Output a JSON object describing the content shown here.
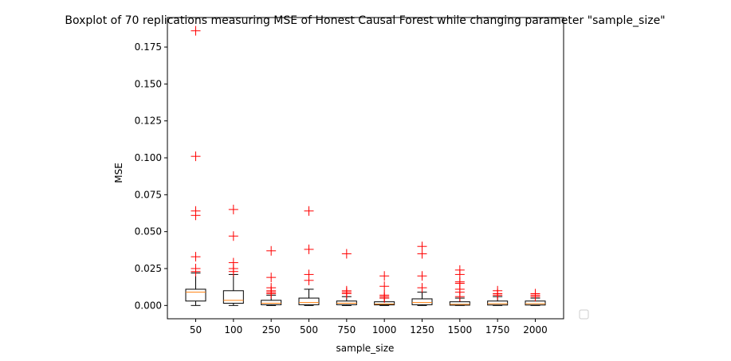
{
  "chart_data": {
    "type": "boxplot",
    "title": "Boxplot of 70 replications measuring MSE of Honest Causal Forest while changing parameter \"sample_size\"",
    "xlabel": "sample_size",
    "ylabel": "MSE",
    "categories": [
      "50",
      "100",
      "250",
      "500",
      "750",
      "1000",
      "1250",
      "1500",
      "1750",
      "2000"
    ],
    "ylim": [
      -0.009,
      0.195
    ],
    "yticks": [
      0.0,
      0.025,
      0.05,
      0.075,
      0.1,
      0.125,
      0.15,
      0.175
    ],
    "ytick_labels": [
      "0.000",
      "0.025",
      "0.050",
      "0.075",
      "0.100",
      "0.125",
      "0.150",
      "0.175"
    ],
    "grid": false,
    "legend": "empty, lower-right outside plot",
    "colors": {
      "box": "#000000",
      "median": "#ff7f0e",
      "flier": "#ff0000"
    },
    "boxes": [
      {
        "category": "50",
        "whislo": 0.0,
        "q1": 0.003,
        "med": 0.009,
        "q3": 0.011,
        "whishi": 0.022,
        "fliers": [
          0.186,
          0.101,
          0.064,
          0.061,
          0.033,
          0.025,
          0.023
        ]
      },
      {
        "category": "100",
        "whislo": 0.0,
        "q1": 0.0015,
        "med": 0.0035,
        "q3": 0.01,
        "whishi": 0.021,
        "fliers": [
          0.065,
          0.047,
          0.029,
          0.025,
          0.023
        ]
      },
      {
        "category": "250",
        "whislo": 0.0,
        "q1": 0.0005,
        "med": 0.0015,
        "q3": 0.0035,
        "whishi": 0.007,
        "fliers": [
          0.037,
          0.019,
          0.012,
          0.01,
          0.009,
          0.008
        ]
      },
      {
        "category": "500",
        "whislo": 0.0,
        "q1": 0.0005,
        "med": 0.002,
        "q3": 0.005,
        "whishi": 0.011,
        "fliers": [
          0.064,
          0.038,
          0.021,
          0.017
        ]
      },
      {
        "category": "750",
        "whislo": 0.0,
        "q1": 0.0005,
        "med": 0.0015,
        "q3": 0.003,
        "whishi": 0.006,
        "fliers": [
          0.035,
          0.01,
          0.009,
          0.008
        ]
      },
      {
        "category": "1000",
        "whislo": 0.0,
        "q1": 0.0004,
        "med": 0.001,
        "q3": 0.0025,
        "whishi": 0.005,
        "fliers": [
          0.02,
          0.013,
          0.007,
          0.006,
          0.005
        ]
      },
      {
        "category": "1250",
        "whislo": 0.0,
        "q1": 0.0005,
        "med": 0.002,
        "q3": 0.0045,
        "whishi": 0.009,
        "fliers": [
          0.04,
          0.035,
          0.02,
          0.012
        ]
      },
      {
        "category": "1500",
        "whislo": 0.0,
        "q1": 0.0002,
        "med": 0.0008,
        "q3": 0.0025,
        "whishi": 0.005,
        "fliers": [
          0.024,
          0.021,
          0.016,
          0.015,
          0.011,
          0.009,
          0.006
        ]
      },
      {
        "category": "1750",
        "whislo": 0.0,
        "q1": 0.0003,
        "med": 0.0012,
        "q3": 0.003,
        "whishi": 0.006,
        "fliers": [
          0.01,
          0.008,
          0.007
        ]
      },
      {
        "category": "2000",
        "whislo": 0.0,
        "q1": 0.0003,
        "med": 0.0012,
        "q3": 0.003,
        "whishi": 0.005,
        "fliers": [
          0.008,
          0.007,
          0.006
        ]
      }
    ]
  }
}
